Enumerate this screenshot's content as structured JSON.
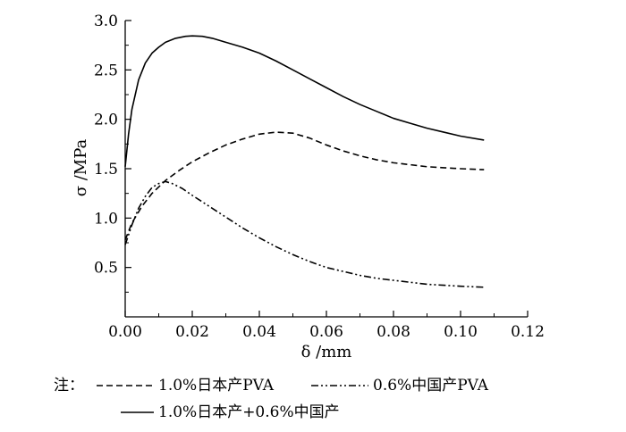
{
  "chart_data": {
    "type": "line",
    "xlabel": "δ /mm",
    "ylabel": "σ /MPa",
    "xlim": [
      0.0,
      0.12
    ],
    "ylim": [
      0.0,
      3.0
    ],
    "x_ticks": [
      "0.00",
      "0.02",
      "0.04",
      "0.06",
      "0.08",
      "0.10",
      "0.12"
    ],
    "y_ticks": [
      "0.5",
      "1.0",
      "1.5",
      "2.0",
      "2.5",
      "3.0"
    ],
    "grid": false,
    "legend_prefix": "注：",
    "legend_placement": "bottom",
    "series": [
      {
        "name": "1.0%日本产PVA",
        "style": "dashed",
        "x": [
          0.0,
          0.002,
          0.005,
          0.008,
          0.012,
          0.016,
          0.02,
          0.025,
          0.03,
          0.035,
          0.04,
          0.045,
          0.05,
          0.055,
          0.06,
          0.065,
          0.07,
          0.075,
          0.08,
          0.085,
          0.09,
          0.095,
          0.1,
          0.107
        ],
        "y": [
          0.78,
          0.95,
          1.12,
          1.25,
          1.38,
          1.48,
          1.57,
          1.66,
          1.74,
          1.8,
          1.85,
          1.87,
          1.86,
          1.81,
          1.74,
          1.68,
          1.63,
          1.59,
          1.56,
          1.54,
          1.52,
          1.51,
          1.5,
          1.49
        ]
      },
      {
        "name": "0.6%中国产PVA",
        "style": "dash-dot-dot",
        "x": [
          0.0,
          0.002,
          0.004,
          0.006,
          0.008,
          0.01,
          0.012,
          0.014,
          0.017,
          0.02,
          0.025,
          0.03,
          0.035,
          0.04,
          0.045,
          0.05,
          0.055,
          0.06,
          0.065,
          0.07,
          0.075,
          0.08,
          0.085,
          0.09,
          0.095,
          0.1,
          0.107
        ],
        "y": [
          0.73,
          0.93,
          1.1,
          1.22,
          1.31,
          1.35,
          1.37,
          1.35,
          1.3,
          1.23,
          1.12,
          1.01,
          0.9,
          0.8,
          0.71,
          0.63,
          0.56,
          0.5,
          0.46,
          0.42,
          0.39,
          0.37,
          0.35,
          0.33,
          0.32,
          0.31,
          0.3
        ]
      },
      {
        "name": "1.0%日本产+0.6%中国产",
        "style": "solid",
        "x": [
          0.0,
          0.001,
          0.002,
          0.004,
          0.006,
          0.008,
          0.01,
          0.012,
          0.015,
          0.018,
          0.02,
          0.023,
          0.026,
          0.03,
          0.035,
          0.04,
          0.045,
          0.05,
          0.055,
          0.06,
          0.065,
          0.07,
          0.075,
          0.08,
          0.085,
          0.09,
          0.095,
          0.1,
          0.107
        ],
        "y": [
          1.52,
          1.85,
          2.1,
          2.4,
          2.57,
          2.67,
          2.73,
          2.78,
          2.82,
          2.84,
          2.845,
          2.84,
          2.82,
          2.78,
          2.73,
          2.67,
          2.59,
          2.5,
          2.41,
          2.32,
          2.23,
          2.15,
          2.08,
          2.01,
          1.96,
          1.91,
          1.87,
          1.83,
          1.79
        ]
      }
    ]
  }
}
